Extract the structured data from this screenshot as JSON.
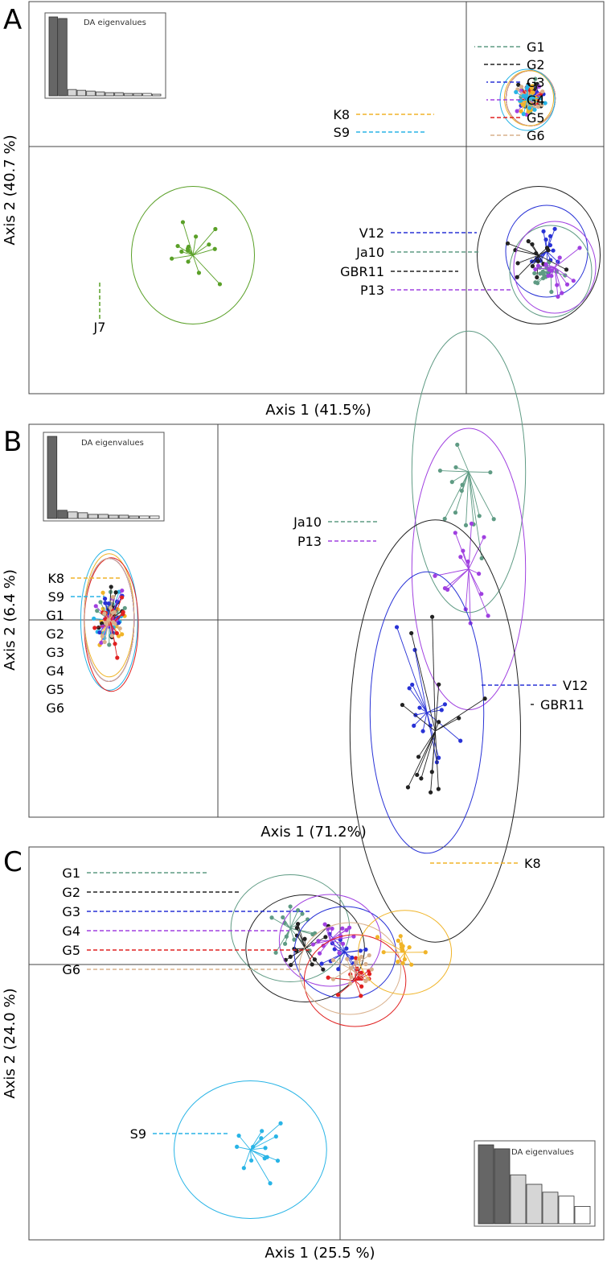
{
  "colors": {
    "G1": "#5f9b84",
    "G2": "#222222",
    "G3": "#2832d6",
    "G4": "#a040e0",
    "G5": "#e02020",
    "G6": "#d9b08c",
    "K8": "#f0b428",
    "S9": "#28b4e6",
    "J7": "#5aa028",
    "Ja10": "#5f9b84",
    "V12": "#2832d6",
    "GBR11": "#222222",
    "P13": "#a040e0"
  },
  "chart_data": [
    {
      "type": "scatter",
      "panel": "A",
      "xlabel": "Axis 1 (41.5%)",
      "ylabel": "Axis 2 (40.7 %)",
      "eigen_title": "DA eigenvalues",
      "eigenvalues": [
        1.0,
        0.98,
        0.08,
        0.07,
        0.06,
        0.05,
        0.04,
        0.04,
        0.03,
        0.03,
        0.03,
        0.02
      ],
      "groups": [
        {
          "name": "G1",
          "centroid": [
            0.8,
            0.6
          ],
          "spread": 0.18
        },
        {
          "name": "G2",
          "centroid": [
            0.8,
            0.6
          ],
          "spread": 0.18
        },
        {
          "name": "G3",
          "centroid": [
            0.8,
            0.6
          ],
          "spread": 0.18
        },
        {
          "name": "G4",
          "centroid": [
            0.8,
            0.6
          ],
          "spread": 0.18
        },
        {
          "name": "G5",
          "centroid": [
            0.8,
            0.6
          ],
          "spread": 0.18
        },
        {
          "name": "G6",
          "centroid": [
            0.8,
            0.6
          ],
          "spread": 0.18
        },
        {
          "name": "K8",
          "centroid": [
            0.78,
            0.6
          ],
          "spread": 0.18
        },
        {
          "name": "S9",
          "centroid": [
            0.76,
            0.58
          ],
          "spread": 0.2
        },
        {
          "name": "J7",
          "centroid": [
            -3.4,
            -1.35
          ],
          "spread": 0.45
        },
        {
          "name": "V12",
          "centroid": [
            1.0,
            -1.3
          ],
          "spread": 0.3
        },
        {
          "name": "Ja10",
          "centroid": [
            1.05,
            -1.55
          ],
          "spread": 0.3
        },
        {
          "name": "GBR11",
          "centroid": [
            0.9,
            -1.35
          ],
          "spread": 0.45
        },
        {
          "name": "P13",
          "centroid": [
            1.1,
            -1.5
          ],
          "spread": 0.3
        }
      ],
      "labels": [
        "G1",
        "G2",
        "G3",
        "G4",
        "K8",
        "G5",
        "S9",
        "G6",
        "V12",
        "Ja10",
        "GBR11",
        "P13",
        "J7"
      ]
    },
    {
      "type": "scatter",
      "panel": "B",
      "xlabel": "Axis 1 (71.2%)",
      "ylabel": "Axis 2 (6.4 %)",
      "eigen_title": "DA eigenvalues",
      "eigenvalues": [
        1.0,
        0.1,
        0.08,
        0.07,
        0.05,
        0.05,
        0.04,
        0.04,
        0.03,
        0.03,
        0.03
      ],
      "groups": [
        {
          "name": "K8",
          "centroid": [
            -2.6,
            0.05
          ],
          "spread": 0.35
        },
        {
          "name": "S9",
          "centroid": [
            -2.6,
            0.0
          ],
          "spread": 0.4
        },
        {
          "name": "G1",
          "centroid": [
            -2.6,
            0.0
          ],
          "spread": 0.35
        },
        {
          "name": "G2",
          "centroid": [
            -2.6,
            0.0
          ],
          "spread": 0.35
        },
        {
          "name": "G3",
          "centroid": [
            -2.6,
            0.0
          ],
          "spread": 0.35
        },
        {
          "name": "G4",
          "centroid": [
            -2.6,
            0.0
          ],
          "spread": 0.35
        },
        {
          "name": "G5",
          "centroid": [
            -2.55,
            -0.05
          ],
          "spread": 0.38
        },
        {
          "name": "G6",
          "centroid": [
            -2.6,
            0.0
          ],
          "spread": 0.35
        },
        {
          "name": "Ja10",
          "centroid": [
            6.0,
            1.6
          ],
          "spread": 0.8
        },
        {
          "name": "P13",
          "centroid": [
            6.0,
            0.55
          ],
          "spread": 0.8
        },
        {
          "name": "V12",
          "centroid": [
            5.0,
            -1.0
          ],
          "spread": 0.8
        },
        {
          "name": "GBR11",
          "centroid": [
            5.2,
            -1.2
          ],
          "spread": 1.2
        }
      ],
      "labels": [
        "Ja10",
        "P13",
        "K8",
        "S9",
        "G1",
        "G2",
        "G3",
        "G4",
        "G5",
        "G6",
        "V12",
        "GBR11"
      ]
    },
    {
      "type": "scatter",
      "panel": "C",
      "xlabel": "Axis 1 (25.5 %)",
      "ylabel": "Axis 2 (24.0 %)",
      "eigen_title": "DA eigenvalues",
      "eigenvalues": [
        1.0,
        0.95,
        0.62,
        0.5,
        0.4,
        0.35,
        0.22
      ],
      "groups": [
        {
          "name": "G1",
          "centroid": [
            -1.0,
            0.9
          ],
          "spread": 0.7
        },
        {
          "name": "G2",
          "centroid": [
            -0.7,
            0.4
          ],
          "spread": 0.7
        },
        {
          "name": "G3",
          "centroid": [
            0.1,
            0.3
          ],
          "spread": 0.6
        },
        {
          "name": "G4",
          "centroid": [
            -0.2,
            0.6
          ],
          "spread": 0.6
        },
        {
          "name": "G5",
          "centroid": [
            0.3,
            -0.4
          ],
          "spread": 0.6
        },
        {
          "name": "G6",
          "centroid": [
            0.2,
            -0.1
          ],
          "spread": 0.6
        },
        {
          "name": "K8",
          "centroid": [
            1.3,
            0.3
          ],
          "spread": 0.55
        },
        {
          "name": "S9",
          "centroid": [
            -1.8,
            -4.6
          ],
          "spread": 0.9
        }
      ],
      "labels": [
        "G1",
        "G2",
        "G3",
        "G4",
        "G5",
        "G6",
        "K8",
        "S9"
      ]
    }
  ]
}
